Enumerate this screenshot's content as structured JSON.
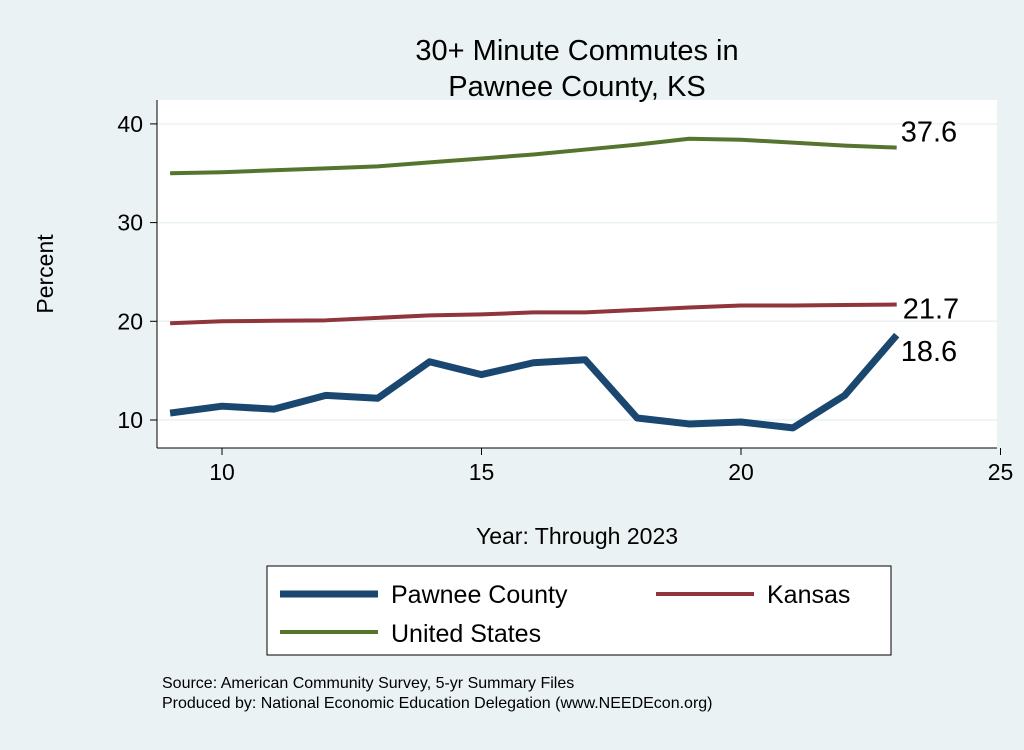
{
  "chart_data": {
    "type": "line",
    "title": [
      "30+ Minute Commutes in",
      "Pawnee County, KS"
    ],
    "xlabel": "Year: Through 2023",
    "ylabel": "Percent",
    "xlim": [
      8.8,
      25.2
    ],
    "ylim": [
      8.2,
      42.4
    ],
    "xticks": [
      10,
      15,
      20,
      25
    ],
    "yticks": [
      10,
      20,
      30,
      40
    ],
    "grid": true,
    "x": [
      9,
      10,
      11,
      12,
      13,
      14,
      15,
      16,
      17,
      18,
      19,
      20,
      21,
      22,
      23
    ],
    "series": [
      {
        "name": "Pawnee County",
        "color": "#1a476f",
        "width": 7,
        "values": [
          10.7,
          11.4,
          11.1,
          12.5,
          12.2,
          15.9,
          14.6,
          15.8,
          16.1,
          10.2,
          9.6,
          9.8,
          9.2,
          12.5,
          18.6
        ],
        "end_label": "18.6"
      },
      {
        "name": "Kansas",
        "color": "#90353b",
        "width": 4,
        "values": [
          19.8,
          20.0,
          20.05,
          20.1,
          20.35,
          20.6,
          20.7,
          20.9,
          20.9,
          21.15,
          21.4,
          21.6,
          21.6,
          21.65,
          21.7
        ],
        "end_label": "21.7"
      },
      {
        "name": "United States",
        "color": "#55752f",
        "width": 4,
        "values": [
          35.0,
          35.1,
          35.3,
          35.5,
          35.7,
          36.1,
          36.5,
          36.9,
          37.4,
          37.9,
          38.5,
          38.4,
          38.1,
          37.8,
          37.6
        ],
        "end_label": "37.6"
      }
    ],
    "legend": {
      "placement": "bottom",
      "entries": [
        "Pawnee County",
        "Kansas",
        "United States"
      ]
    },
    "notes": [
      "Source: American Community Survey, 5-yr Summary Files",
      "Produced by: National Economic Education Delegation (www.NEEDEcon.org)"
    ]
  }
}
